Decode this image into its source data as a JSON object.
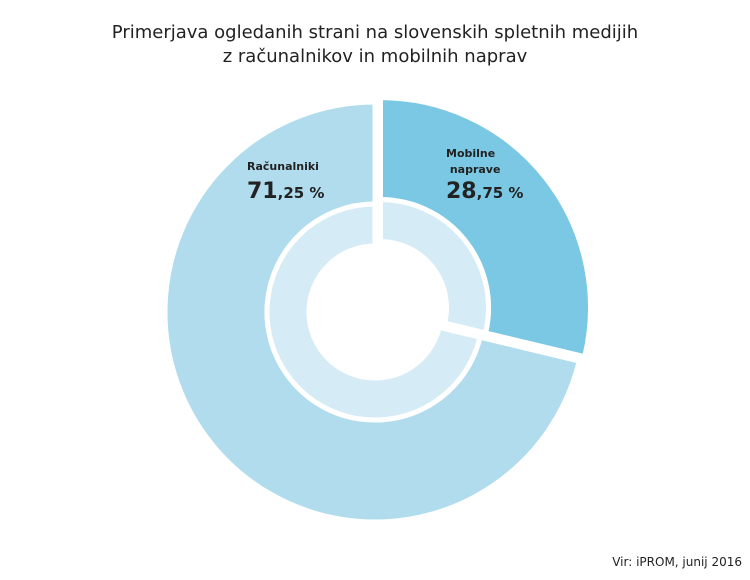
{
  "chart_data": {
    "type": "pie",
    "title": [
      "Primerjava ogledanih strani na slovenskih spletnih medijih",
      "z računalnikov in mobilnih naprav"
    ],
    "categories": [
      "Računalniki",
      "Mobilne naprave"
    ],
    "values": [
      71.25,
      28.75
    ],
    "value_labels": [
      "71,25 %",
      "28,75 %"
    ],
    "colors": [
      "#b0dced",
      "#7bc8e4"
    ],
    "inner_color": "#d5ecf6",
    "source": "Vir: iPROM, junij 2016"
  }
}
